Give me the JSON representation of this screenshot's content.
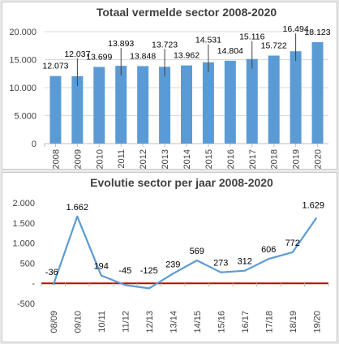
{
  "chart_data": [
    {
      "type": "bar",
      "title": "Totaal vermelde sector 2008-2020",
      "categories": [
        "2008",
        "2009",
        "2010",
        "2011",
        "2012",
        "2013",
        "2014",
        "2015",
        "2016",
        "2017",
        "2018",
        "2019",
        "2020"
      ],
      "values": [
        12073,
        12037,
        13699,
        13893,
        13848,
        13723,
        13962,
        14531,
        14804,
        15116,
        15722,
        16494,
        18123
      ],
      "data_labels": [
        "12.073",
        "12.037",
        "13.699",
        "13.893",
        "13.848",
        "13.723",
        "13.962",
        "14.531",
        "14.804",
        "15.116",
        "15.722",
        "16.494",
        "18.123"
      ],
      "ylim": [
        0,
        20000
      ],
      "yticks": [
        0,
        5000,
        10000,
        15000,
        20000
      ],
      "ytick_labels": [
        "0",
        "5.000",
        "10.000",
        "15.000",
        "20.000"
      ],
      "grid": true,
      "bar_color": "#5b9bd5"
    },
    {
      "type": "line",
      "title": "Evolutie sector per jaar 2008-2020",
      "categories": [
        "08/09",
        "09/10",
        "10/11",
        "11/12",
        "12/13",
        "13/14",
        "14/15",
        "15/16",
        "16/17",
        "17/18",
        "18/19",
        "19/20"
      ],
      "values": [
        -36,
        1662,
        194,
        -45,
        -125,
        239,
        569,
        273,
        312,
        606,
        772,
        1629
      ],
      "data_labels": [
        "-36",
        "1.662",
        "194",
        "-45",
        "-125",
        "239",
        "569",
        "273",
        "312",
        "606",
        "772",
        "1.629"
      ],
      "ylim": [
        -500,
        2000
      ],
      "yticks": [
        -500,
        0,
        500,
        1000,
        1500,
        2000
      ],
      "ytick_labels": [
        "-500",
        "-",
        "500",
        "1.000",
        "1.500",
        "2.000"
      ],
      "grid": false,
      "line_color": "#5b9bd5",
      "zero_line_color": "#c00000"
    }
  ]
}
